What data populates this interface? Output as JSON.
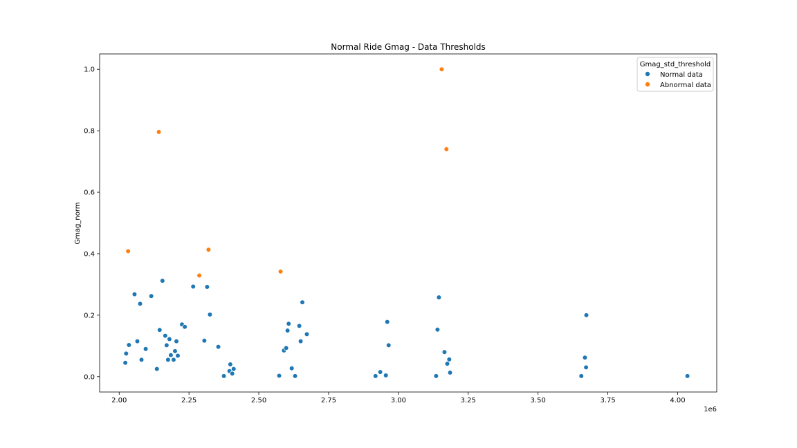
{
  "chart_data": {
    "type": "scatter",
    "title": "Normal Ride Gmag - Data Thresholds",
    "xlabel": "",
    "ylabel": "Gmag_norm",
    "x_offset_label": "1e6",
    "xlim": [
      1.93,
      4.14
    ],
    "ylim": [
      -0.05,
      1.05
    ],
    "x_ticks": [
      2.0,
      2.25,
      2.5,
      2.75,
      3.0,
      3.25,
      3.5,
      3.75,
      4.0
    ],
    "x_tick_labels": [
      "2.00",
      "2.25",
      "2.50",
      "2.75",
      "3.00",
      "3.25",
      "3.50",
      "3.75",
      "4.00"
    ],
    "y_ticks": [
      0.0,
      0.2,
      0.4,
      0.6,
      0.8,
      1.0
    ],
    "y_tick_labels": [
      "0.0",
      "0.2",
      "0.4",
      "0.6",
      "0.8",
      "1.0"
    ],
    "grid": false,
    "legend": {
      "title": "Gmag_std_threshold",
      "placement": "top-right"
    },
    "series": [
      {
        "name": "Normal data",
        "color": "#1f77b4",
        "points": [
          [
            2.022,
            0.045
          ],
          [
            2.025,
            0.075
          ],
          [
            2.035,
            0.103
          ],
          [
            2.055,
            0.268
          ],
          [
            2.065,
            0.115
          ],
          [
            2.075,
            0.237
          ],
          [
            2.08,
            0.055
          ],
          [
            2.095,
            0.09
          ],
          [
            2.115,
            0.262
          ],
          [
            2.135,
            0.025
          ],
          [
            2.145,
            0.152
          ],
          [
            2.155,
            0.312
          ],
          [
            2.165,
            0.133
          ],
          [
            2.17,
            0.102
          ],
          [
            2.175,
            0.055
          ],
          [
            2.18,
            0.122
          ],
          [
            2.185,
            0.07
          ],
          [
            2.195,
            0.055
          ],
          [
            2.2,
            0.083
          ],
          [
            2.205,
            0.115
          ],
          [
            2.21,
            0.068
          ],
          [
            2.225,
            0.17
          ],
          [
            2.235,
            0.162
          ],
          [
            2.265,
            0.293
          ],
          [
            2.305,
            0.117
          ],
          [
            2.315,
            0.292
          ],
          [
            2.325,
            0.202
          ],
          [
            2.355,
            0.097
          ],
          [
            2.375,
            0.002
          ],
          [
            2.395,
            0.018
          ],
          [
            2.398,
            0.04
          ],
          [
            2.405,
            0.01
          ],
          [
            2.41,
            0.025
          ],
          [
            2.573,
            0.003
          ],
          [
            2.59,
            0.085
          ],
          [
            2.598,
            0.093
          ],
          [
            2.603,
            0.15
          ],
          [
            2.607,
            0.172
          ],
          [
            2.618,
            0.027
          ],
          [
            2.63,
            0.002
          ],
          [
            2.645,
            0.165
          ],
          [
            2.65,
            0.115
          ],
          [
            2.656,
            0.242
          ],
          [
            2.672,
            0.138
          ],
          [
            2.918,
            0.002
          ],
          [
            2.935,
            0.015
          ],
          [
            2.955,
            0.004
          ],
          [
            2.96,
            0.178
          ],
          [
            2.965,
            0.102
          ],
          [
            3.135,
            0.002
          ],
          [
            3.14,
            0.153
          ],
          [
            3.145,
            0.258
          ],
          [
            3.165,
            0.08
          ],
          [
            3.175,
            0.042
          ],
          [
            3.182,
            0.056
          ],
          [
            3.185,
            0.013
          ],
          [
            3.655,
            0.002
          ],
          [
            3.668,
            0.062
          ],
          [
            3.672,
            0.03
          ],
          [
            3.673,
            0.2
          ],
          [
            4.035,
            0.002
          ]
        ]
      },
      {
        "name": "Abnormal data",
        "color": "#ff7f0e",
        "points": [
          [
            2.032,
            0.408
          ],
          [
            2.142,
            0.796
          ],
          [
            2.287,
            0.329
          ],
          [
            2.32,
            0.413
          ],
          [
            2.578,
            0.342
          ],
          [
            3.155,
            1.0
          ],
          [
            3.172,
            0.74
          ]
        ]
      }
    ]
  }
}
